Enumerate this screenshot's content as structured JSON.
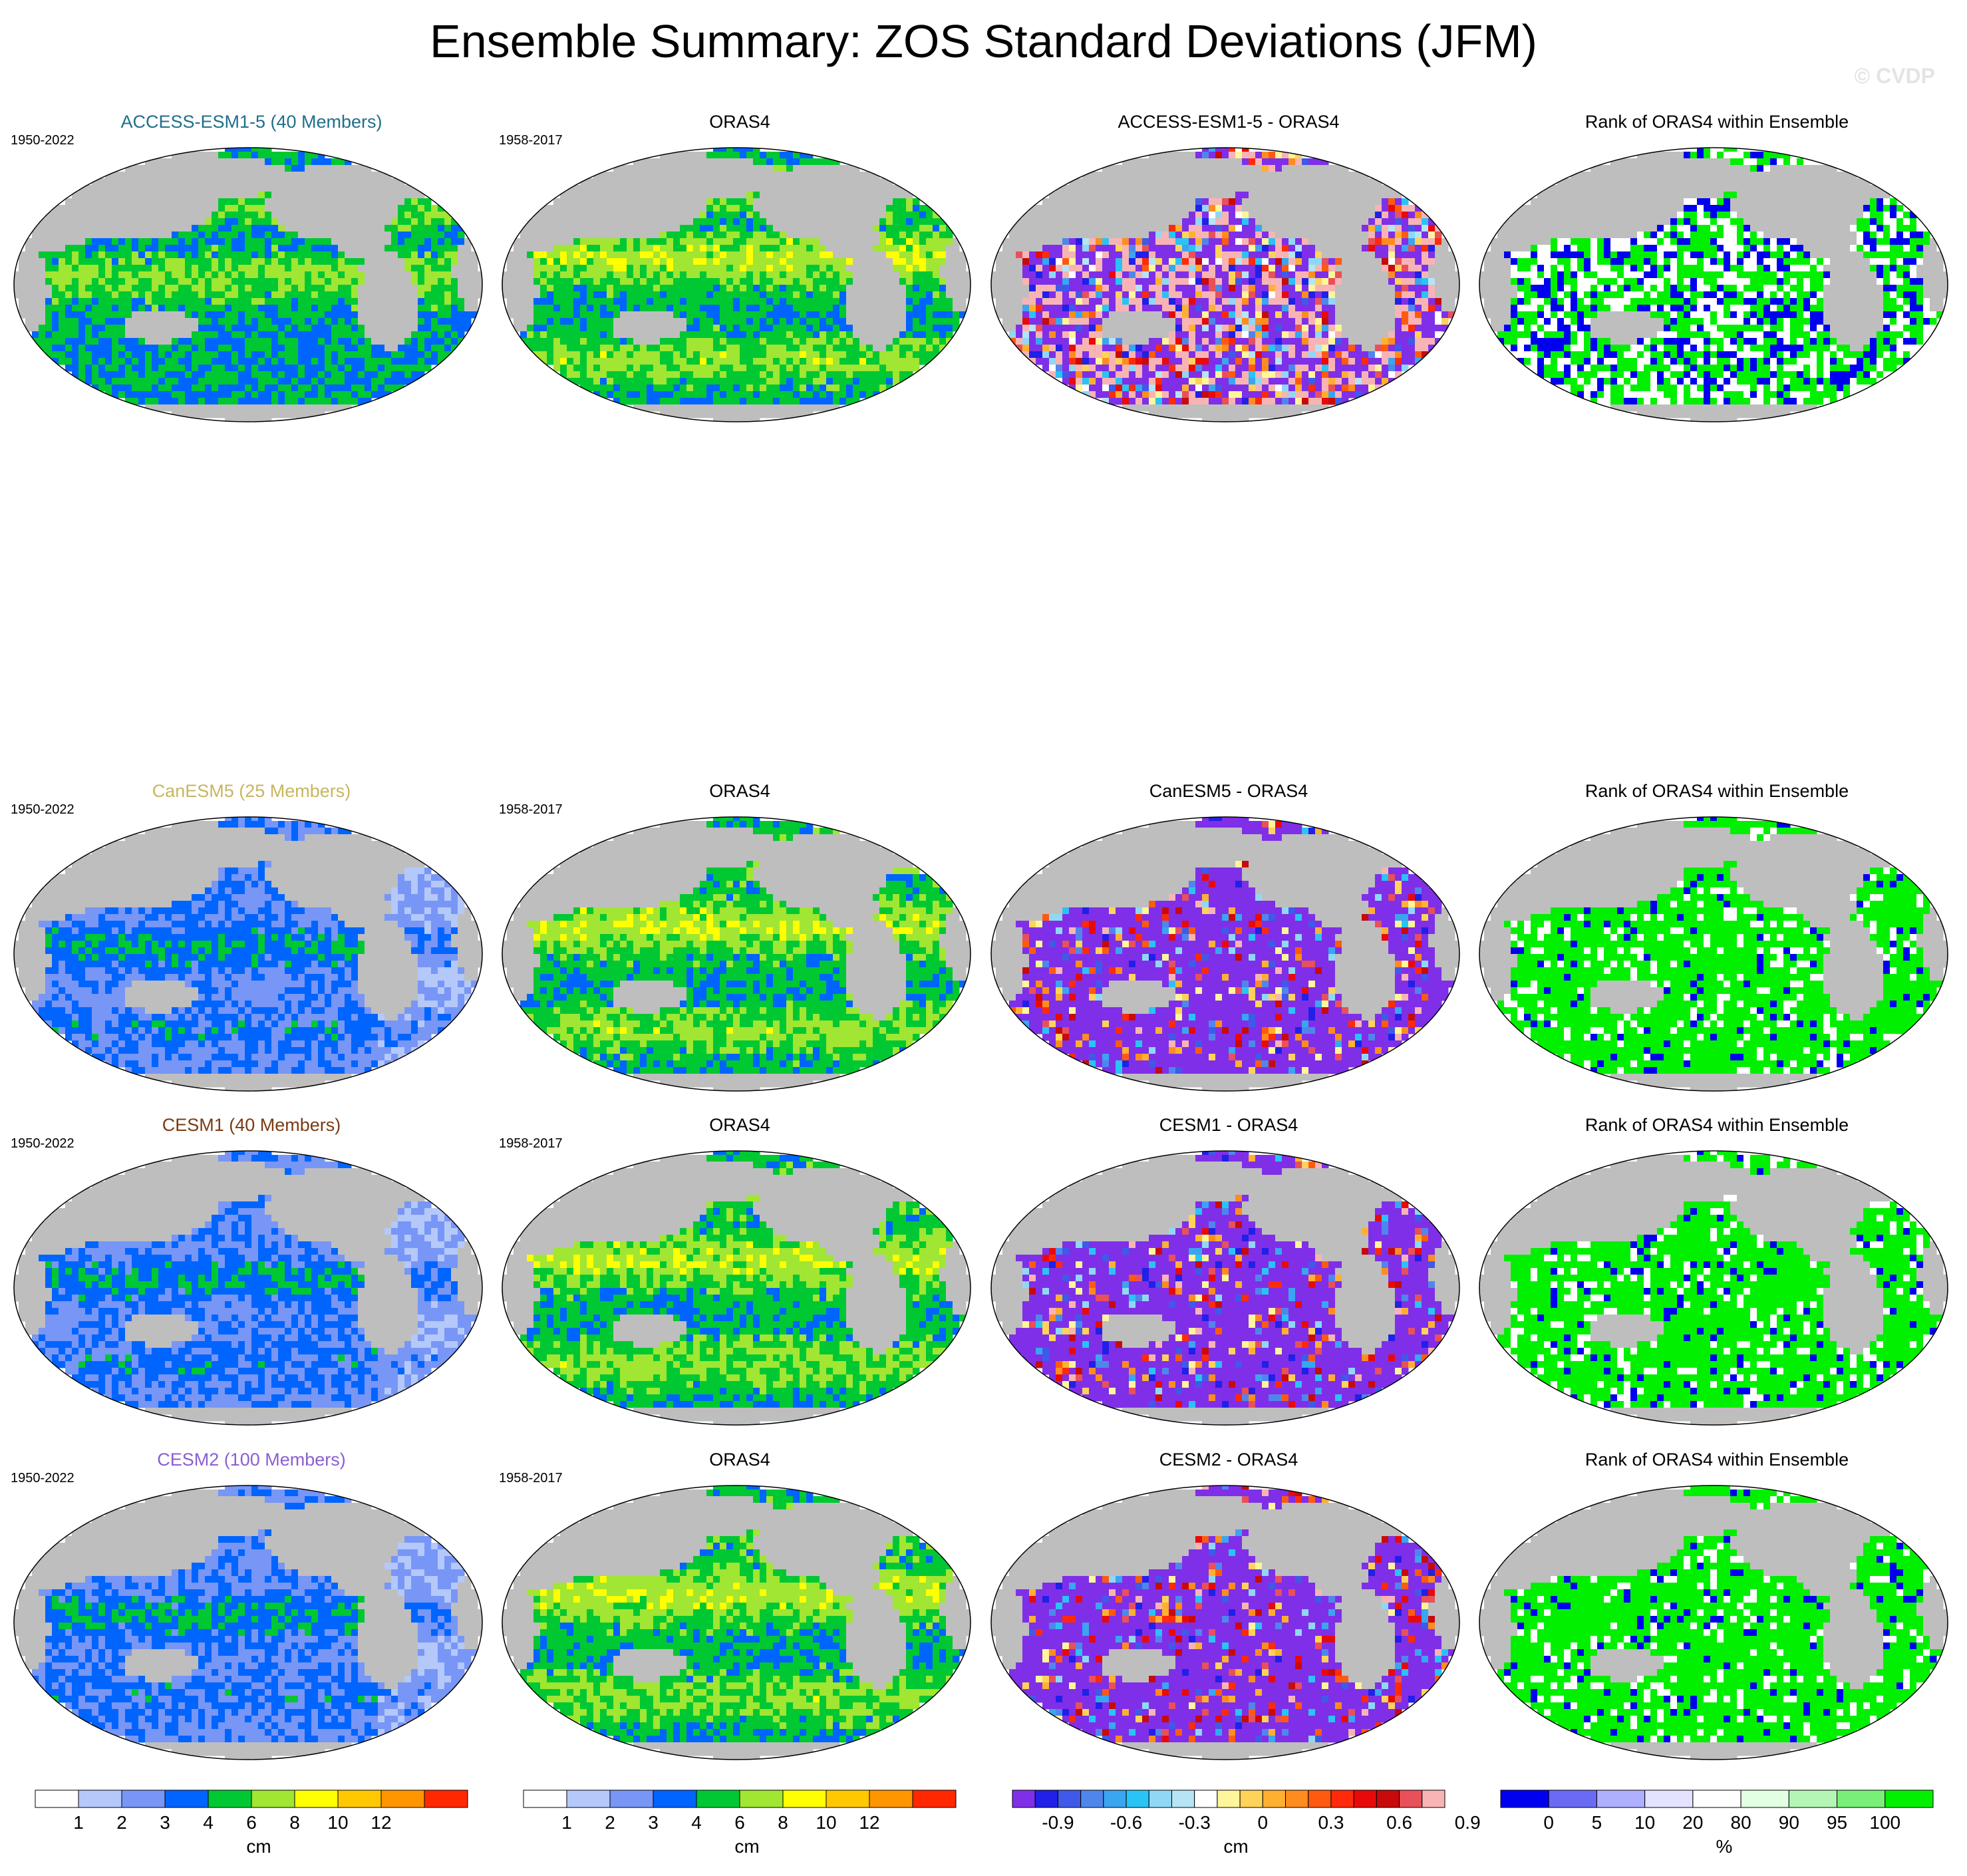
{
  "title": "Ensemble Summary: ZOS Standard Deviations (JFM)",
  "watermark": "© CVDP",
  "colors": {
    "land": "#bebebe",
    "ensemble_titles": {
      "ACCESS-ESM1-5": "#1f6f8b",
      "CanESM5": "#c8b560",
      "CESM1": "#7a3b12",
      "CESM2": "#8a5fd1"
    }
  },
  "rows": [
    {
      "ensemble": "ACCESS-ESM1-5",
      "panels": [
        {
          "title": "ACCESS-ESM1-5 (40 Members)",
          "period": "1950-2022",
          "kind": "std",
          "pattern": "access"
        },
        {
          "title": "ORAS4",
          "period": "1958-2017",
          "kind": "std",
          "pattern": "oras"
        },
        {
          "title": "ACCESS-ESM1-5 - ORAS4",
          "period": "",
          "kind": "diff",
          "pattern": "mixed"
        },
        {
          "title": "Rank of ORAS4 within Ensemble",
          "period": "",
          "kind": "rank",
          "pattern": "mixedrank"
        }
      ]
    },
    {
      "ensemble": "CanESM5",
      "panels": [
        {
          "title": "CanESM5 (25 Members)",
          "period": "1950-2022",
          "kind": "std",
          "pattern": "low"
        },
        {
          "title": "ORAS4",
          "period": "1958-2017",
          "kind": "std",
          "pattern": "oras"
        },
        {
          "title": "CanESM5 - ORAS4",
          "period": "",
          "kind": "diff",
          "pattern": "negative"
        },
        {
          "title": "Rank of ORAS4 within Ensemble",
          "period": "",
          "kind": "rank",
          "pattern": "high"
        }
      ]
    },
    {
      "ensemble": "CESM1",
      "panels": [
        {
          "title": "CESM1 (40 Members)",
          "period": "1950-2022",
          "kind": "std",
          "pattern": "low"
        },
        {
          "title": "ORAS4",
          "period": "1958-2017",
          "kind": "std",
          "pattern": "oras"
        },
        {
          "title": "CESM1 - ORAS4",
          "period": "",
          "kind": "diff",
          "pattern": "negative"
        },
        {
          "title": "Rank of ORAS4 within Ensemble",
          "period": "",
          "kind": "rank",
          "pattern": "high"
        }
      ]
    },
    {
      "ensemble": "CESM2",
      "panels": [
        {
          "title": "CESM2 (100 Members)",
          "period": "1950-2022",
          "kind": "std",
          "pattern": "low"
        },
        {
          "title": "ORAS4",
          "period": "1958-2017",
          "kind": "std",
          "pattern": "oras"
        },
        {
          "title": "CESM2 - ORAS4",
          "period": "",
          "kind": "diff",
          "pattern": "negative"
        },
        {
          "title": "Rank of ORAS4 within Ensemble",
          "period": "",
          "kind": "rank",
          "pattern": "high"
        }
      ]
    }
  ],
  "colorbars": [
    {
      "name": "std-model",
      "unit": "cm",
      "tick_labels": [
        "1",
        "2",
        "3",
        "4",
        "6",
        "8",
        "10",
        "12"
      ],
      "colors": [
        "#ffffff",
        "#b4c8fa",
        "#7896f5",
        "#0064ff",
        "#00c832",
        "#a0e632",
        "#ffff00",
        "#ffc800",
        "#ff9600",
        "#ff2800"
      ]
    },
    {
      "name": "std-obs",
      "unit": "cm",
      "tick_labels": [
        "1",
        "2",
        "3",
        "4",
        "6",
        "8",
        "10",
        "12"
      ],
      "colors": [
        "#ffffff",
        "#b4c8fa",
        "#7896f5",
        "#0064ff",
        "#00c832",
        "#a0e632",
        "#ffff00",
        "#ffc800",
        "#ff9600",
        "#ff2800"
      ]
    },
    {
      "name": "difference",
      "unit": "cm",
      "tick_labels": [
        "-0.9",
        "-0.6",
        "-0.3",
        "0",
        "0.3",
        "0.6",
        "0.9"
      ],
      "colors": [
        "#7f2fe8",
        "#2020e8",
        "#3f5ae8",
        "#4f86ec",
        "#3aa5f0",
        "#2ac3f5",
        "#8fd8f5",
        "#b6e4f5",
        "#ffffff",
        "#fff59a",
        "#ffd35a",
        "#ffb030",
        "#ff8c1f",
        "#ff5a10",
        "#ff2a0a",
        "#e80a0a",
        "#c80a0a",
        "#e8505a",
        "#f8b4b4"
      ]
    },
    {
      "name": "rank",
      "unit": "%",
      "tick_labels": [
        "0",
        "5",
        "10",
        "20",
        "80",
        "90",
        "95",
        "100"
      ],
      "colors": [
        "#0000f0",
        "#6a6af5",
        "#afafff",
        "#e3e3ff",
        "#ffffff",
        "#e3ffe3",
        "#b4f5b4",
        "#78f078",
        "#00f000"
      ]
    }
  ]
}
